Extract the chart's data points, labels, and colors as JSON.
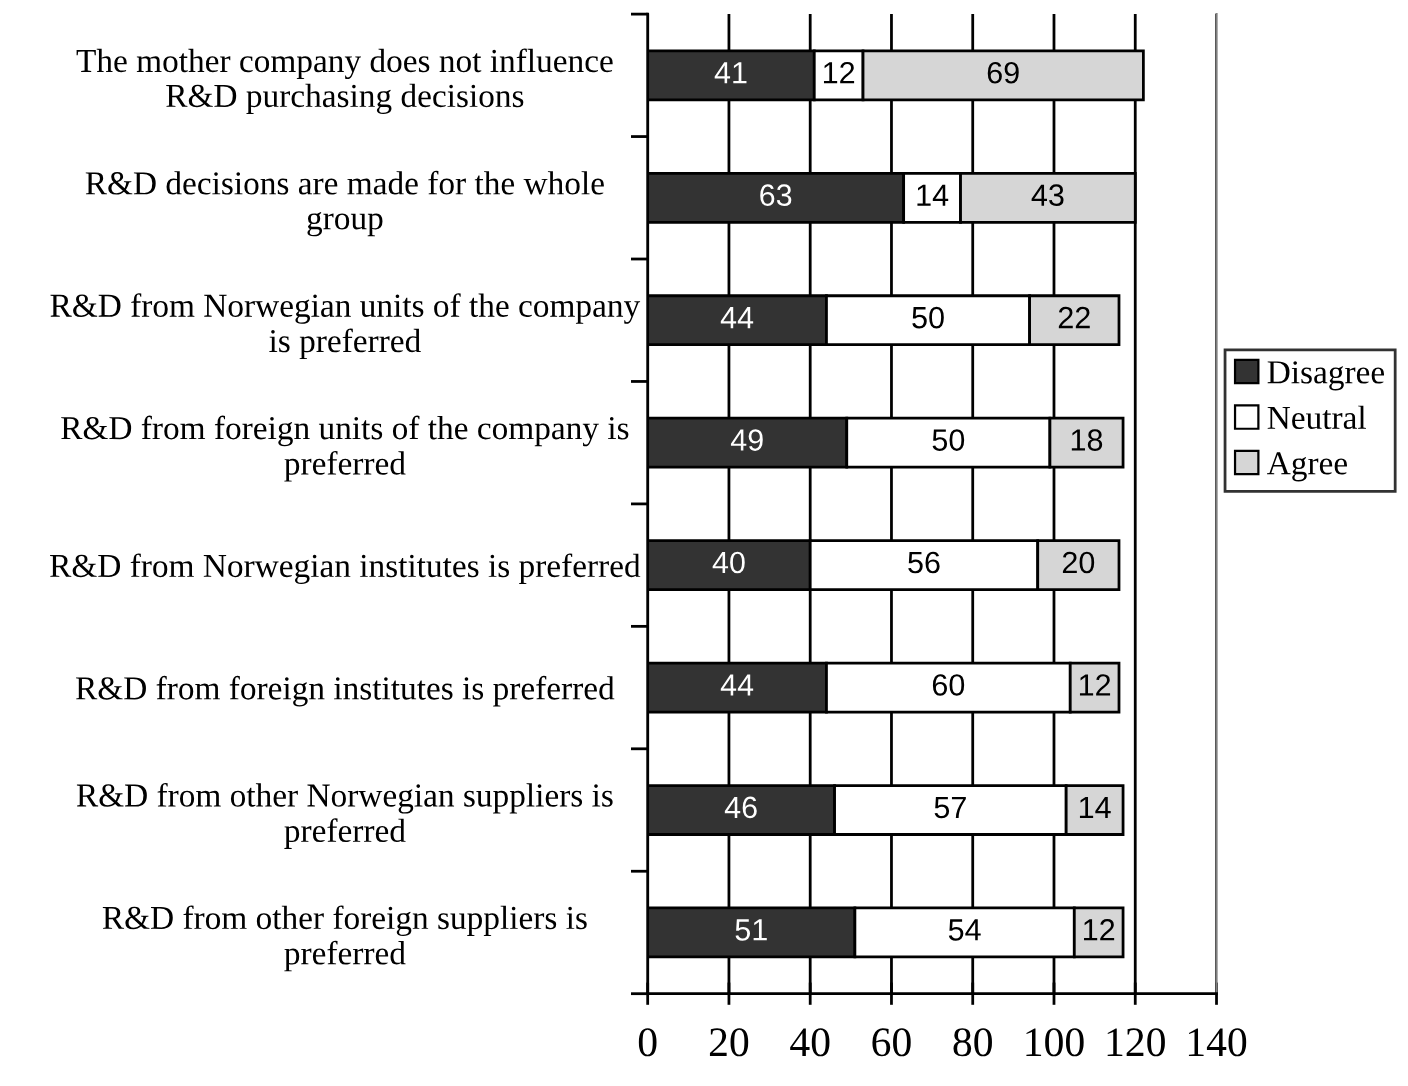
{
  "chart_data": {
    "type": "bar",
    "orientation": "horizontal",
    "stacked": true,
    "data_labels": true,
    "grid": "x",
    "legend": "right",
    "categories": [
      "The mother company does not influence\nR&D purchasing decisions",
      "R&D decisions are made for the whole\ngroup",
      "R&D from Norwegian units of the company\nis preferred",
      "R&D from foreign units of the company is\npreferred",
      "R&D from Norwegian institutes is preferred",
      "R&D from foreign institutes is preferred",
      "R&D from other Norwegian suppliers is\npreferred",
      "R&D from other foreign suppliers is\npreferred"
    ],
    "series": [
      {
        "name": "Disagree",
        "color": "#333333",
        "values": [
          41,
          63,
          44,
          49,
          40,
          44,
          46,
          51
        ]
      },
      {
        "name": "Neutral",
        "color": "#ffffff",
        "values": [
          12,
          14,
          50,
          50,
          56,
          60,
          57,
          54
        ]
      },
      {
        "name": "Agree",
        "color": "#d6d6d6",
        "values": [
          69,
          43,
          22,
          18,
          20,
          12,
          14,
          12
        ]
      }
    ],
    "xlim": [
      0,
      140
    ],
    "xticks": [
      0,
      20,
      40,
      60,
      80,
      100,
      120,
      140
    ]
  }
}
